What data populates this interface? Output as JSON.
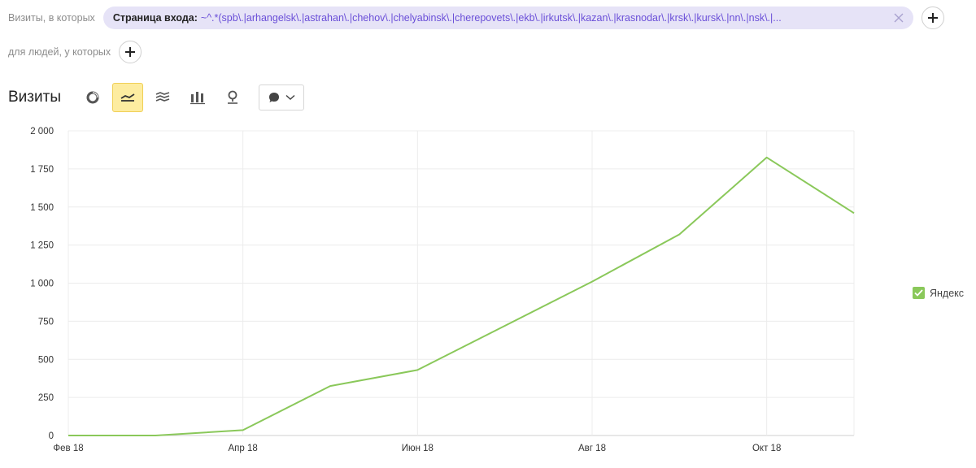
{
  "filters": {
    "visits_label": "Визиты, в которых",
    "chip_key": "Страница входа:",
    "chip_value": "~^.*(spb\\.|arhangelsk\\.|astrahan\\.|chehov\\.|chelyabinsk\\.|cherepovets\\.|ekb\\.|irkutsk\\.|kazan\\.|krasnodar\\.|krsk\\.|kursk\\.|nn\\.|nsk\\.|...",
    "people_label": "для людей, у которых"
  },
  "toolbar": {
    "title": "Визиты",
    "icons": [
      "pie-chart-icon",
      "line-chart-icon",
      "area-chart-icon",
      "bar-chart-icon",
      "map-icon"
    ],
    "active": "line-chart-icon",
    "dropdown_icon": "comment-icon"
  },
  "chart_data": {
    "type": "line",
    "x": [
      "2018-02",
      "2018-03",
      "2018-04",
      "2018-05",
      "2018-06",
      "2018-07",
      "2018-08",
      "2018-09",
      "2018-10",
      "2018-11"
    ],
    "xtick_labels": [
      "Фев 18",
      "Апр 18",
      "Июн 18",
      "Авг 18",
      "Окт 18"
    ],
    "xtick_index": [
      0,
      2,
      4,
      6,
      8
    ],
    "yticks": [
      0,
      250,
      500,
      750,
      1000,
      1250,
      1500,
      1750,
      2000
    ],
    "ytick_labels": [
      "0",
      "250",
      "500",
      "750",
      "1 000",
      "1 250",
      "1 500",
      "1 750",
      "2 000"
    ],
    "ylim": [
      0,
      2000
    ],
    "series": [
      {
        "name": "Яндекс",
        "color": "#8ac85a",
        "values": [
          0,
          0,
          35,
          325,
          430,
          720,
          1010,
          1320,
          1825,
          1460
        ]
      }
    ],
    "legend_position": "right",
    "grid": true
  }
}
